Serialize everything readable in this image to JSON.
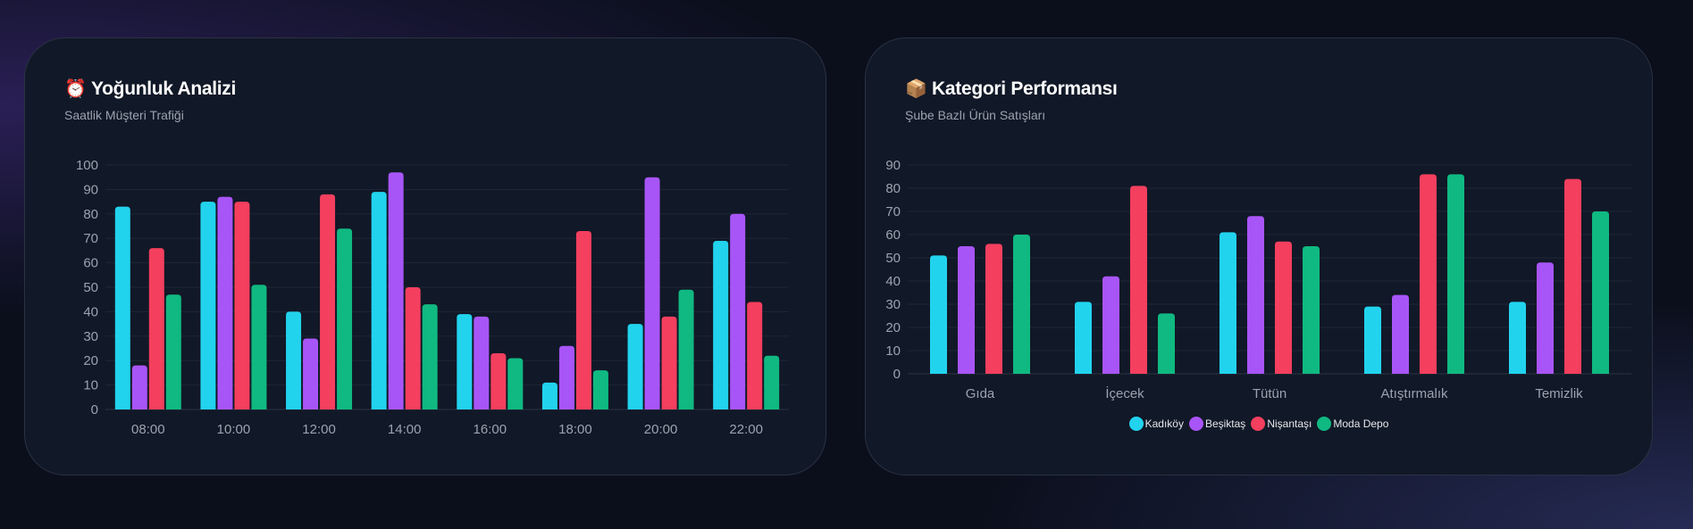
{
  "colors": {
    "kadikoy": "#22d3ee",
    "besiktas": "#a855f7",
    "nisantasi": "#f43f5e",
    "moda": "#10b981"
  },
  "chart_data": [
    {
      "type": "bar",
      "title": "Yoğunluk Analizi",
      "title_icon": "⏰",
      "subtitle": "Saatlik Müşteri Trafiği",
      "categories": [
        "08:00",
        "10:00",
        "12:00",
        "14:00",
        "16:00",
        "18:00",
        "20:00",
        "22:00"
      ],
      "ylim": [
        0,
        100
      ],
      "yticks": [
        "0",
        "10",
        "20",
        "30",
        "40",
        "50",
        "60",
        "70",
        "80",
        "90",
        "100"
      ],
      "grid": true,
      "series": [
        {
          "name": "Kadıköy",
          "color": "#22d3ee",
          "values": [
            83,
            85,
            40,
            89,
            39,
            11,
            35,
            69
          ]
        },
        {
          "name": "Beşiktaş",
          "color": "#a855f7",
          "values": [
            18,
            87,
            29,
            97,
            38,
            26,
            95,
            80
          ]
        },
        {
          "name": "Nişantaşı",
          "color": "#f43f5e",
          "values": [
            66,
            85,
            88,
            50,
            23,
            73,
            38,
            44
          ]
        },
        {
          "name": "Moda Depo",
          "color": "#10b981",
          "values": [
            47,
            51,
            74,
            43,
            21,
            16,
            49,
            22
          ]
        }
      ]
    },
    {
      "type": "bar",
      "title": "Kategori Performansı",
      "title_icon": "📦",
      "subtitle": "Şube Bazlı Ürün Satışları",
      "categories": [
        "Gıda",
        "İçecek",
        "Tütün",
        "Atıştırmalık",
        "Temizlik"
      ],
      "ylim": [
        0,
        90
      ],
      "yticks": [
        "0",
        "10",
        "20",
        "30",
        "40",
        "50",
        "60",
        "70",
        "80",
        "90"
      ],
      "grid": true,
      "legend_position": "bottom",
      "legend": [
        "Kadıköy",
        "Beşiktaş",
        "Nişantaşı",
        "Moda Depo"
      ],
      "series": [
        {
          "name": "Kadıköy",
          "color": "#22d3ee",
          "values": [
            51,
            31,
            61,
            29,
            31
          ]
        },
        {
          "name": "Beşiktaş",
          "color": "#a855f7",
          "values": [
            55,
            42,
            68,
            34,
            48
          ]
        },
        {
          "name": "Nişantaşı",
          "color": "#f43f5e",
          "values": [
            56,
            81,
            57,
            86,
            84
          ]
        },
        {
          "name": "Moda Depo",
          "color": "#10b981",
          "values": [
            60,
            26,
            55,
            86,
            70
          ]
        }
      ]
    }
  ]
}
